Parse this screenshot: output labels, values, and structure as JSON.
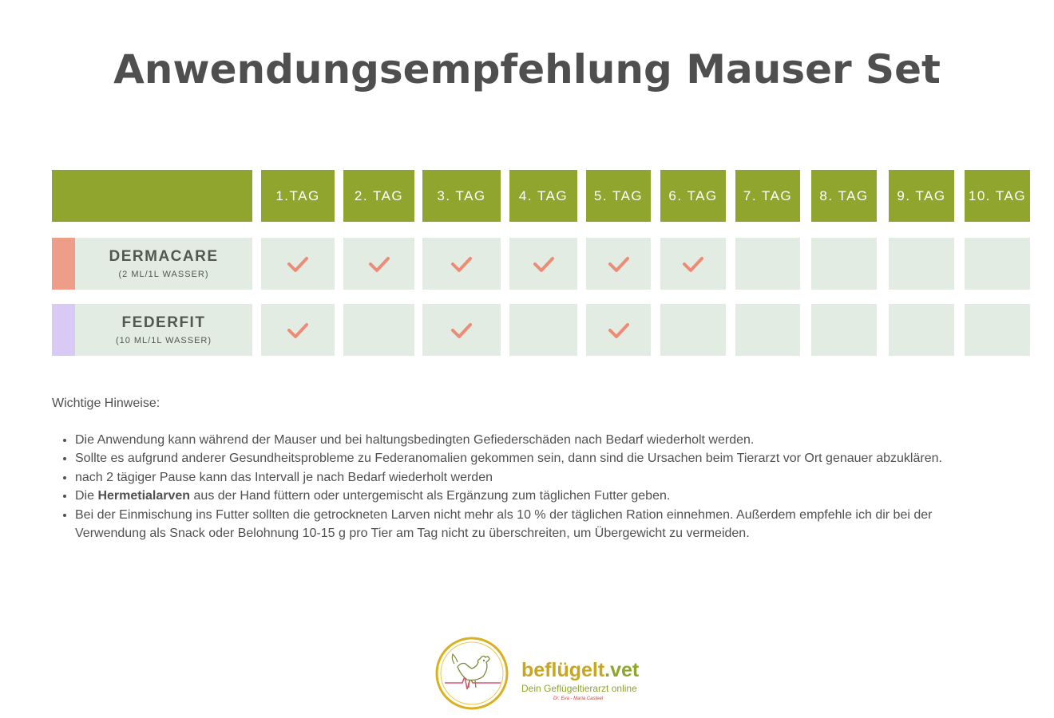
{
  "title": "Anwendungsempfehlung Mauser Set",
  "table": {
    "days": [
      "1.TAG",
      "2. TAG",
      "3. TAG",
      "4. TAG",
      "5. TAG",
      "6. TAG",
      "7. TAG",
      "8. TAG",
      "9. TAG",
      "10. TAG"
    ],
    "products": [
      {
        "name": "DERMACARE",
        "dose": "(2 ML/1L WASSER)",
        "color": "#ee9d89",
        "checks": [
          true,
          true,
          true,
          true,
          true,
          true,
          false,
          false,
          false,
          false
        ]
      },
      {
        "name": "FEDERFIT",
        "dose": "(10 ML/1L WASSER)",
        "color": "#d8c9f5",
        "checks": [
          true,
          false,
          true,
          false,
          true,
          false,
          false,
          false,
          false,
          false
        ]
      }
    ],
    "header_color": "#8fa52e",
    "cell_color": "#e3ece3",
    "check_color": "#ec8c76",
    "check_icon": "checkmark-icon"
  },
  "notes": {
    "heading": "Wichtige Hinweise:",
    "items": [
      {
        "text": "Die Anwendung kann während der Mauser und bei haltungsbedingten Gefiederschäden nach Bedarf wiederholt werden."
      },
      {
        "text": "Sollte es aufgrund anderer Gesundheitsprobleme zu Federanomalien gekommen sein, dann sind die Ursachen beim Tierarzt vor Ort genauer abzuklären."
      },
      {
        "text": "nach 2 tägiger Pause kann das Intervall je nach Bedarf wiederholt werden"
      },
      {
        "prefix": "Die ",
        "bold": "Hermetialarven",
        "suffix": " aus der Hand füttern oder untergemischt als Ergänzung zum täglichen Futter geben."
      },
      {
        "text": "Bei der Einmischung ins Futter sollten die getrockneten Larven nicht mehr als 10 % der täglichen Ration einnehmen. Außerdem empfehle ich dir bei der Verwendung als Snack oder Belohnung 10-15 g pro Tier am Tag nicht zu überschreiten, um Übergewicht zu vermeiden."
      }
    ]
  },
  "logo": {
    "name_main": "beflügelt",
    "name_suffix": ".vet",
    "tagline": "Dein Geflügeltierarzt online",
    "signature": "Dr. Eva - Maria Casteel",
    "icon": "rooster-logo-icon"
  }
}
